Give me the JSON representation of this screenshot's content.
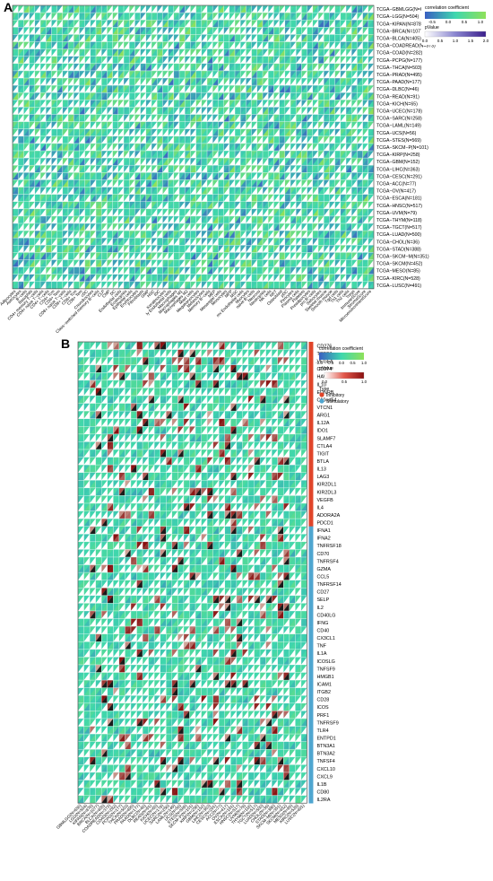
{
  "figure": {
    "panel_a_label": "A",
    "panel_b_label": "B"
  },
  "colors": {
    "grid_bg": "#2ac8a2",
    "low": "#3a5fc2",
    "mid": "#3fd7ae",
    "high": "#8fe15a",
    "warm_low": "#f2ecdc",
    "warm_high": "#8a1010",
    "inhibitory": "#e0452a",
    "stimulatory": "#4fa6d0",
    "frame": "#333333"
  },
  "chart_data": [
    {
      "id": "panel-a",
      "type": "heatmap",
      "legend": {
        "title1": "correlation coefficient",
        "ticks1": [
          "-0.5",
          "0.0",
          "0.5",
          "1.0"
        ],
        "title2": "pValue",
        "ticks2": [
          "0.0",
          "0.5",
          "1.0",
          "1.5",
          "2.0"
        ]
      },
      "rows": [
        "TCGA−GBMLGG(N=656)",
        "TCGA−LGG(N=504)",
        "TCGA−KIPAN(N=878)",
        "TCGA−BRCA(N=1077)",
        "TCGA−BLCA(N=405)",
        "TCGA−COADREAD(N=373)",
        "TCGA−COAD(N=282)",
        "TCGA−PCPG(N=177)",
        "TCGA−THCA(N=503)",
        "TCGA−PRAD(N=495)",
        "TCGA−PAAD(N=177)",
        "TCGA−DLBC(N=46)",
        "TCGA−READ(N=91)",
        "TCGA−KICH(N=65)",
        "TCGA−UCEC(N=178)",
        "TCGA−SARC(N=258)",
        "TCGA−LAML(N=149)",
        "TCGA−UCS(N=56)",
        "TCGA−STES(N=569)",
        "TCGA−SKCM−P(N=101)",
        "TCGA−KIRP(N=258)",
        "TCGA−GBM(N=152)",
        "TCGA−LIHC(N=363)",
        "TCGA−CESC(N=291)",
        "TCGA−ACC(N=77)",
        "TCGA−OV(N=417)",
        "TCGA−ESCA(N=181)",
        "TCGA−HNSC(N=517)",
        "TCGA−UVM(N=79)",
        "TCGA−THYM(N=118)",
        "TCGA−TGCT(N=517)",
        "TCGA−LUAD(N=500)",
        "TCGA−CHOL(N=36)",
        "TCGA−STAD(N=388)",
        "TCGA−SKCM−M(N=351)",
        "TCGA−SKCM(N=452)",
        "TCGA−MESO(N=85)",
        "TCGA−KIRC(N=528)",
        "TCGA−LUSC(N=491)"
      ],
      "columns": [
        "Adipocytes",
        "Astrocytes",
        "B−cells",
        "Basophils",
        "CD4+ memory T−cells",
        "CD4+ naive T−cells",
        "CD4+ T−cells",
        "CD4+ Tcm",
        "CD4+ Tem",
        "CD8+ naive T−cells",
        "CD8+ T−cells",
        "CD8+ Tcm",
        "CD8+ Tem",
        "cDC",
        "Chondrocytes",
        "Class−switched memory B−cells",
        "CLP",
        "CMP",
        "DC",
        "Endothelial cells",
        "Eosinophils",
        "Epithelial cells",
        "Erythrocytes",
        "Fibroblasts",
        "GMP",
        "HSC",
        "iDC",
        "Keratinocytes",
        "ly Endothelial cells",
        "Macrophages",
        "Macrophages M1",
        "Macrophages M2",
        "Mast cells",
        "Megakaryocytes",
        "Melanocytes",
        "Memory B−cells",
        "MEP",
        "Mesangial cells",
        "Monocytes",
        "MPP",
        "MSC",
        "mv Endothelial cells",
        "Myocytes",
        "naive B−cells",
        "Neurons",
        "Neutrophils",
        "NK cells",
        "NKT",
        "Osteoblast",
        "pDC",
        "Pericytes",
        "Plasma cells",
        "Platelets",
        "Preadipocytes",
        "pro B−cells",
        "Sebocytes",
        "Skeletal muscle",
        "Smooth muscle",
        "Tgd cells",
        "Th1 cells",
        "Th2 cells",
        "Tregs",
        "ImmuneScore",
        "StromaScore",
        "MicroenvironmentScore"
      ],
      "value_range": [
        -0.5,
        1.0
      ],
      "pvalue_range": [
        0.0,
        2.0
      ]
    },
    {
      "id": "panel-b",
      "type": "heatmap",
      "legend": {
        "title1": "correlation coefficient",
        "ticks1": [
          "-1.0",
          "-0.5",
          "0.0",
          "0.5",
          "1.0"
        ],
        "title2": "pValue",
        "ticks2": [
          "0.0",
          "0.5",
          "1.0"
        ],
        "type_title": "Type",
        "type_items": [
          "Inhibitory",
          "Stimulatory"
        ]
      },
      "rows": [
        "CD276",
        "TGFB1",
        "VEGFA",
        "CD274",
        "HAVCR2",
        "IL10",
        "EDNRB",
        "C10orf54",
        "VTCN1",
        "ARG1",
        "IL12A",
        "IDO1",
        "SLAMF7",
        "CTLA4",
        "TIGIT",
        "BTLA",
        "IL13",
        "LAG3",
        "KIR2DL1",
        "KIR2DL3",
        "VEGFB",
        "IL4",
        "ADORA2A",
        "PDCD1",
        "IFNA1",
        "IFNA2",
        "TNFRSF18",
        "CD70",
        "TNFRSF4",
        "GZMA",
        "CCL5",
        "TNFRSF14",
        "CD27",
        "SELP",
        "IL2",
        "CD40LG",
        "IFNG",
        "CD40",
        "CX3CL1",
        "TNF",
        "IL1A",
        "ICOSLG",
        "TNFSF9",
        "HMGB1",
        "ICAM1",
        "ITGB2",
        "CD28",
        "ICOS",
        "PRF1",
        "TNFRSF9",
        "TLR4",
        "ENTPD1",
        "BTN3A1",
        "BTN3A2",
        "TNFSF4",
        "CXCL10",
        "CXCL9",
        "IL1B",
        "CD80",
        "IL2RA"
      ],
      "row_types": [
        "Inhibitory",
        "Inhibitory",
        "Inhibitory",
        "Inhibitory",
        "Inhibitory",
        "Inhibitory",
        "Inhibitory",
        "Inhibitory",
        "Inhibitory",
        "Inhibitory",
        "Inhibitory",
        "Inhibitory",
        "Inhibitory",
        "Inhibitory",
        "Inhibitory",
        "Inhibitory",
        "Inhibitory",
        "Inhibitory",
        "Inhibitory",
        "Inhibitory",
        "Inhibitory",
        "Inhibitory",
        "Inhibitory",
        "Inhibitory",
        "Stimulatory",
        "Stimulatory",
        "Stimulatory",
        "Stimulatory",
        "Stimulatory",
        "Stimulatory",
        "Stimulatory",
        "Stimulatory",
        "Stimulatory",
        "Stimulatory",
        "Stimulatory",
        "Stimulatory",
        "Stimulatory",
        "Stimulatory",
        "Stimulatory",
        "Stimulatory",
        "Stimulatory",
        "Stimulatory",
        "Stimulatory",
        "Stimulatory",
        "Stimulatory",
        "Stimulatory",
        "Stimulatory",
        "Stimulatory",
        "Stimulatory",
        "Stimulatory",
        "Stimulatory",
        "Stimulatory",
        "Stimulatory",
        "Stimulatory",
        "Stimulatory",
        "Stimulatory",
        "Stimulatory",
        "Stimulatory",
        "Stimulatory",
        "Stimulatory"
      ],
      "columns": [
        "GBMLGG(N=656)",
        "LGG(N=504)",
        "KIPAN(N=878)",
        "BRCA(N=1077)",
        "BLCA(N=405)",
        "COADREAD(N=373)",
        "COAD(N=282)",
        "PCPG(N=177)",
        "THCA(N=503)",
        "PRAD(N=495)",
        "PAAD(N=177)",
        "DLBC(N=46)",
        "READ(N=91)",
        "KICH(N=65)",
        "UCEC(N=178)",
        "SARC(N=258)",
        "LAML(N=149)",
        "UCS(N=56)",
        "STES(N=569)",
        "SKCM−P(N=101)",
        "KIRP(N=258)",
        "GBM(N=152)",
        "LIHC(N=363)",
        "CESC(N=291)",
        "ACC(N=77)",
        "OV(N=417)",
        "ESCA(N=181)",
        "HNSC(N=517)",
        "UVM(N=79)",
        "THYM(N=118)",
        "TGCT(N=517)",
        "LUAD(N=500)",
        "CHOL(N=36)",
        "STAD(N=388)",
        "SKCM−M(N=351)",
        "SKCM(N=452)",
        "MESO(N=85)",
        "KIRC(N=528)",
        "LUSC(N=491)"
      ],
      "value_range": [
        -1.0,
        1.0
      ],
      "pvalue_range": [
        0.0,
        1.0
      ]
    }
  ]
}
